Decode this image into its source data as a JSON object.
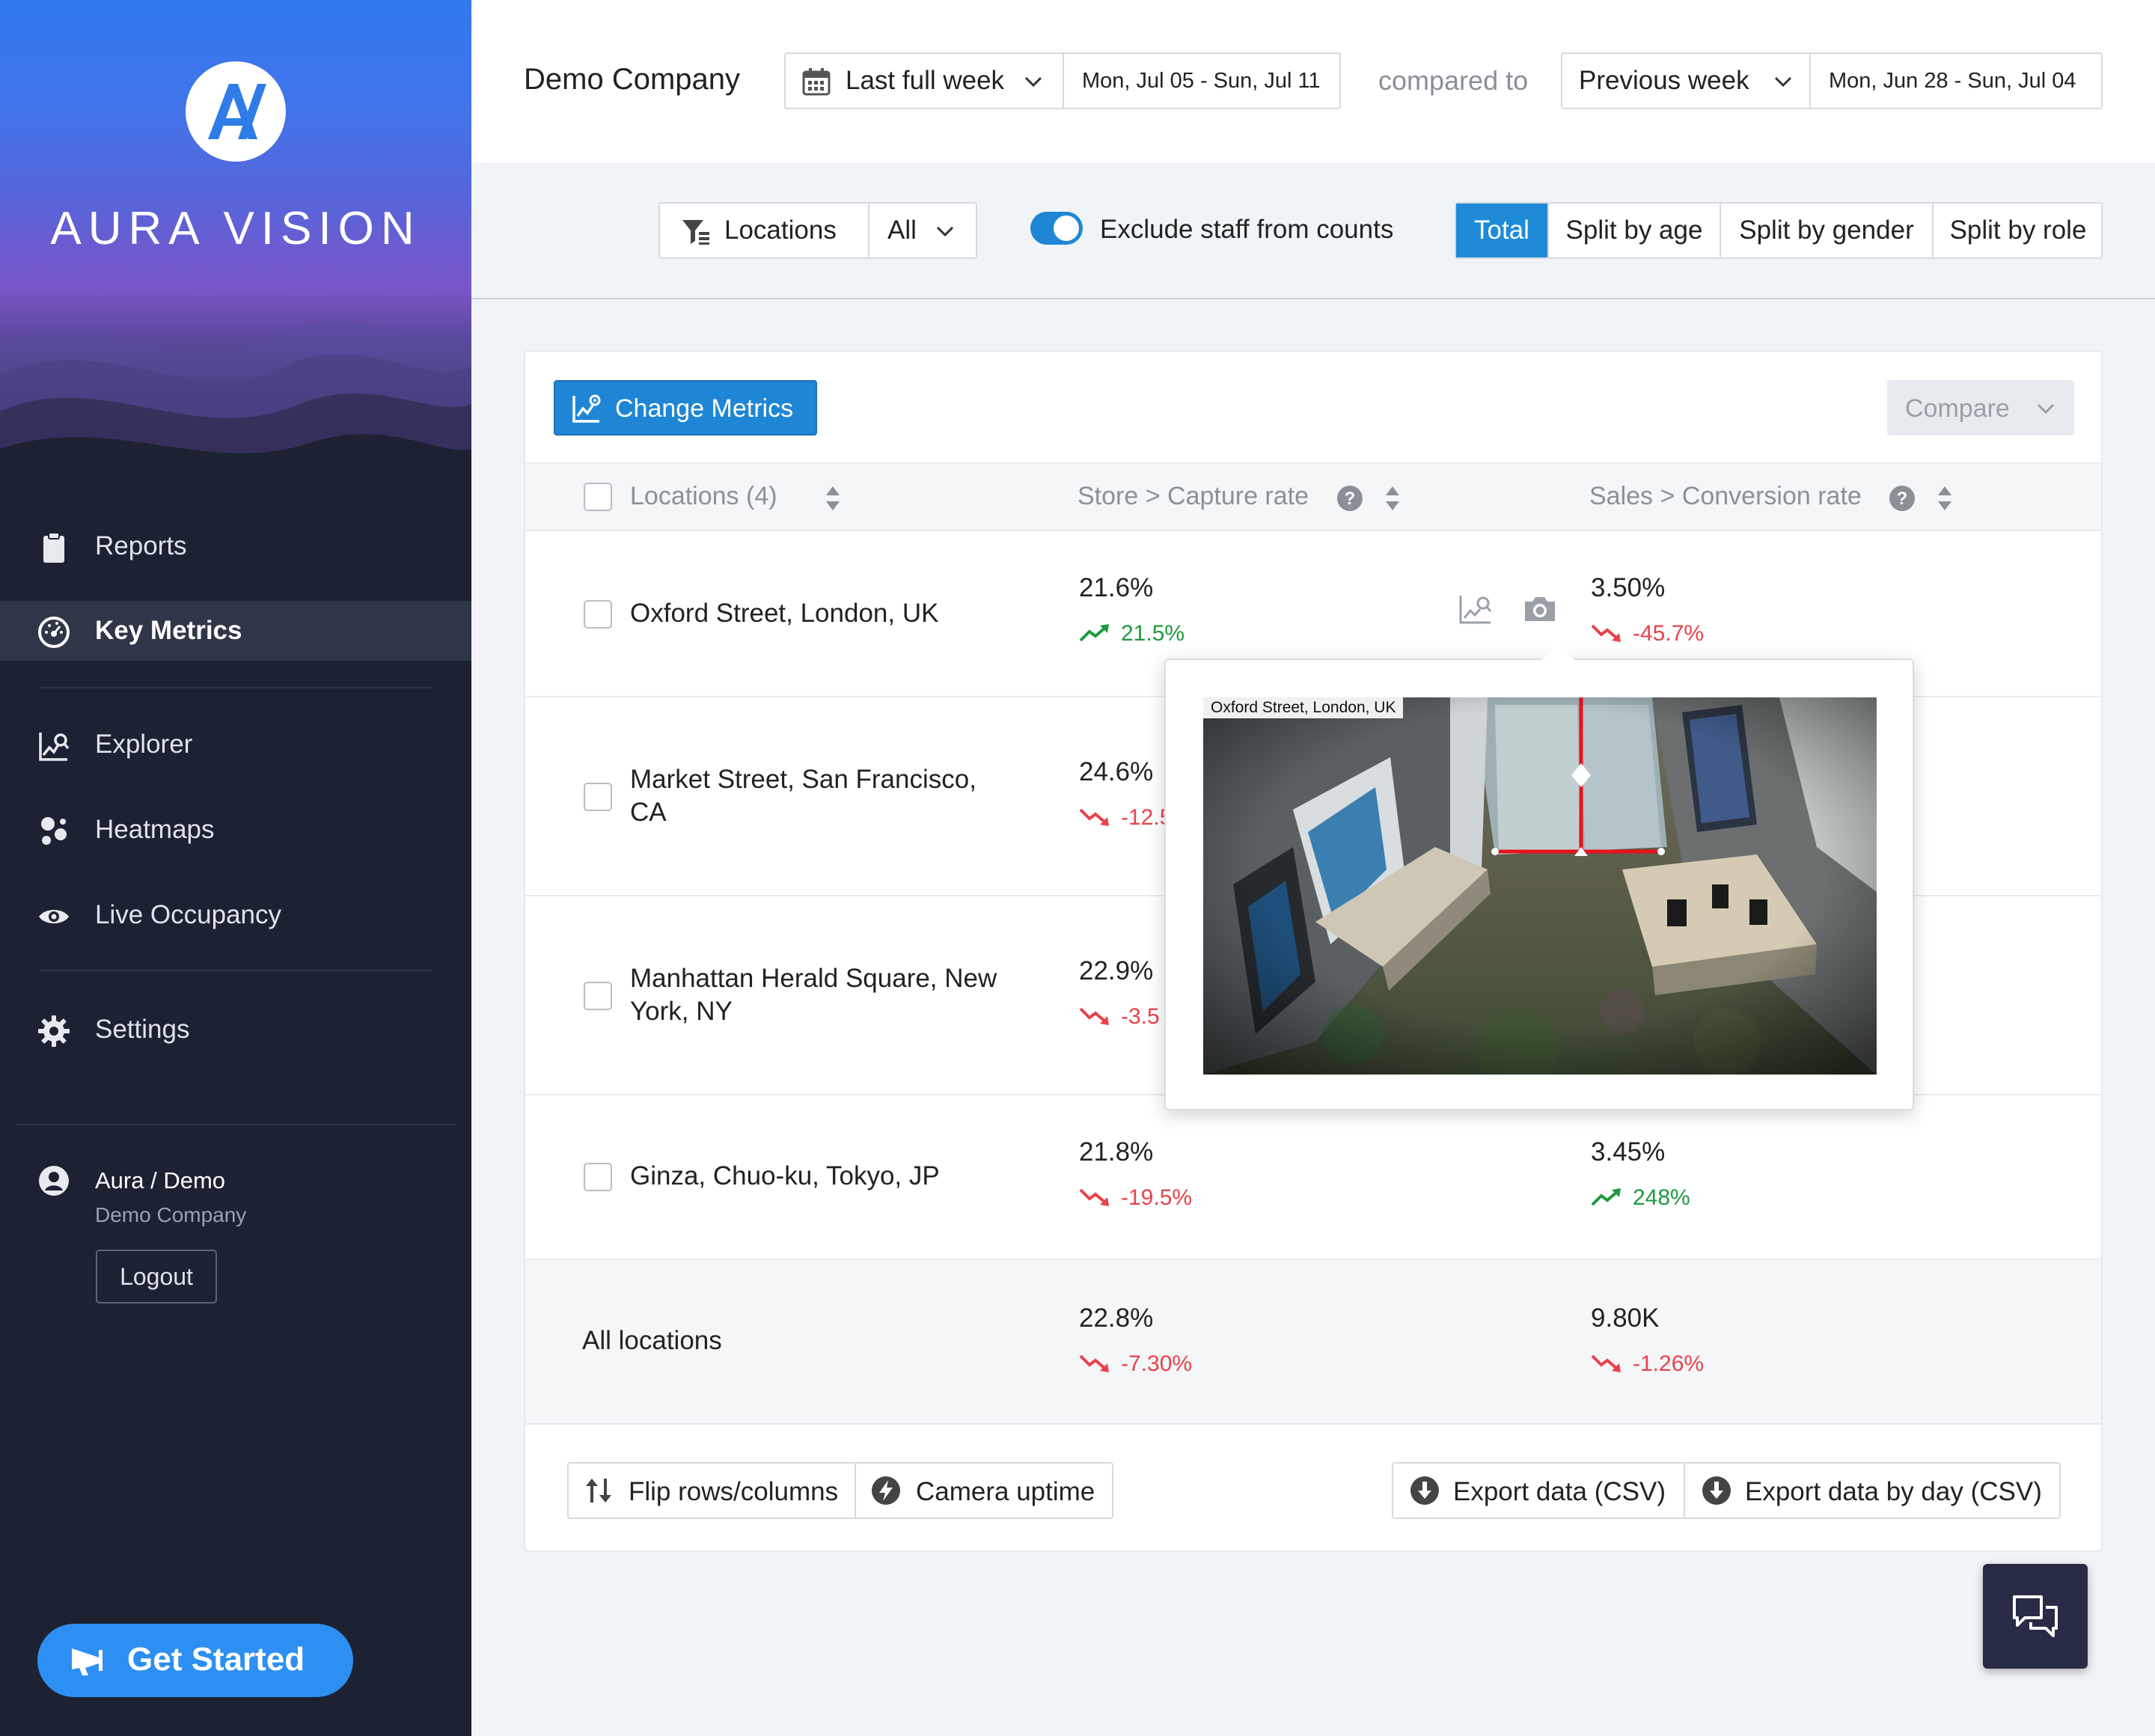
{
  "sidebar": {
    "brand": "AURA VISION",
    "nav": [
      {
        "label": "Reports",
        "icon": "clipboard-icon"
      },
      {
        "label": "Key Metrics",
        "icon": "gauge-icon",
        "active": true
      },
      {
        "label": "Explorer",
        "icon": "chart-search-icon"
      },
      {
        "label": "Heatmaps",
        "icon": "heatmap-icon"
      },
      {
        "label": "Live Occupancy",
        "icon": "eye-icon"
      },
      {
        "label": "Settings",
        "icon": "gear-icon"
      }
    ],
    "user": {
      "name": "Aura / Demo",
      "company": "Demo Company",
      "logout_label": "Logout"
    },
    "get_started_label": "Get Started"
  },
  "header": {
    "company": "Demo Company",
    "period": {
      "label": "Last full week",
      "range": "Mon, Jul 05 - Sun, Jul 11"
    },
    "compared_to_label": "compared to",
    "comparison": {
      "label": "Previous week",
      "range": "Mon, Jun 28 - Sun, Jul 04"
    }
  },
  "filters": {
    "locations_label": "Locations",
    "locations_value": "All",
    "exclude_staff_label": "Exclude staff from counts",
    "exclude_staff_on": true,
    "splits": [
      "Total",
      "Split by age",
      "Split by gender",
      "Split by role"
    ],
    "active_split": "Total"
  },
  "card": {
    "change_metrics_label": "Change Metrics",
    "compare_label": "Compare",
    "columns": {
      "locations": "Locations (4)",
      "capture": "Store > Capture rate",
      "conversion": "Sales > Conversion rate"
    },
    "rows": [
      {
        "name": "Oxford Street, London, UK",
        "capture": "21.6%",
        "capture_delta": "21.5%",
        "capture_dir": "up",
        "conversion": "3.50%",
        "conversion_delta": "-45.7%",
        "conversion_dir": "down"
      },
      {
        "name": "Market Street, San Francisco, CA",
        "capture": "24.6%",
        "capture_delta": "-12.5",
        "capture_dir": "down"
      },
      {
        "name": "Manhattan Herald Square, New York, NY",
        "capture": "22.9%",
        "capture_delta": "-3.5",
        "capture_dir": "down"
      },
      {
        "name": "Ginza, Chuo-ku, Tokyo, JP",
        "capture": "21.8%",
        "capture_delta": "-19.5%",
        "capture_dir": "down",
        "conversion": "3.45%",
        "conversion_delta": "248%",
        "conversion_dir": "up"
      }
    ],
    "total": {
      "name": "All locations",
      "capture": "22.8%",
      "capture_delta": "-7.30%",
      "conversion": "9.80K",
      "conversion_delta": "-1.26%"
    },
    "footer": {
      "flip_label": "Flip rows/columns",
      "uptime_label": "Camera uptime",
      "export_label": "Export data (CSV)",
      "export_day_label": "Export data by day (CSV)"
    }
  },
  "popover": {
    "camera_label": "Oxford Street, London, UK"
  }
}
